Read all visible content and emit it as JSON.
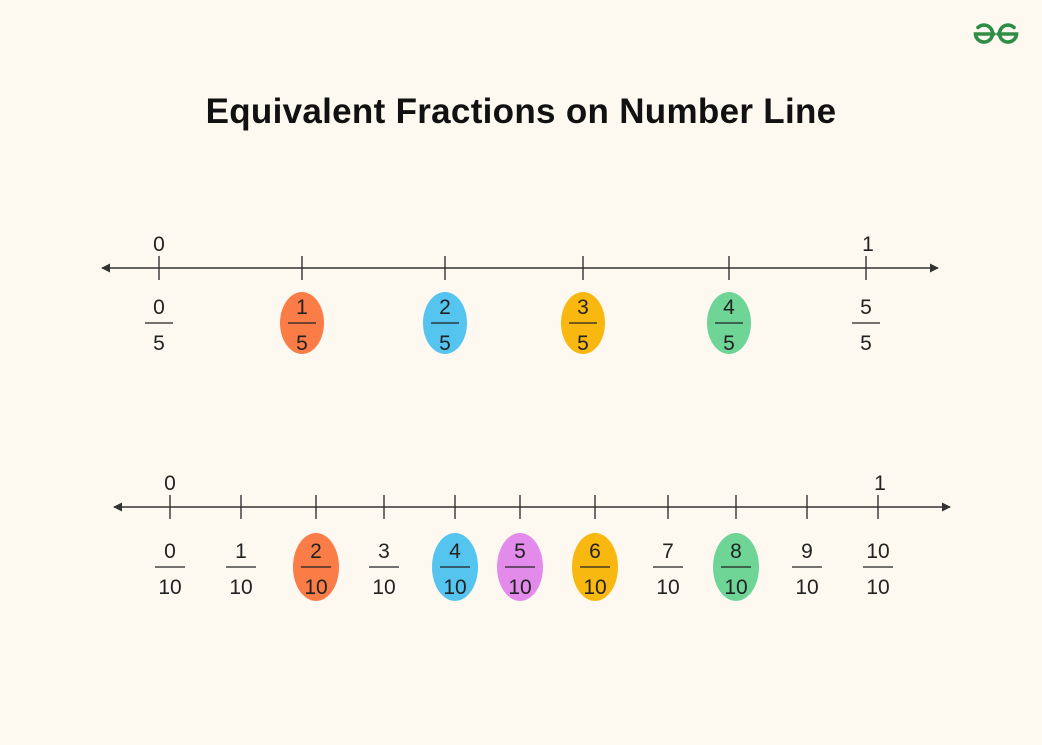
{
  "title": "Equivalent Fractions on Number Line",
  "logo": {
    "icon": "gfg-logo-icon",
    "color": "#2f8d46"
  },
  "colors": {
    "orange": "#fa7c47",
    "blue": "#55c4ef",
    "yellow": "#f9b80f",
    "green": "#6fd596",
    "purple": "#e38bea",
    "line": "#333333"
  },
  "number_lines": [
    {
      "start_label": "0",
      "end_label": "1",
      "ticks": [
        {
          "num": "0",
          "den": "5",
          "highlight": null
        },
        {
          "num": "1",
          "den": "5",
          "highlight": "orange"
        },
        {
          "num": "2",
          "den": "5",
          "highlight": "blue"
        },
        {
          "num": "3",
          "den": "5",
          "highlight": "yellow"
        },
        {
          "num": "4",
          "den": "5",
          "highlight": "green"
        },
        {
          "num": "5",
          "den": "5",
          "highlight": null
        }
      ]
    },
    {
      "start_label": "0",
      "end_label": "1",
      "ticks": [
        {
          "num": "0",
          "den": "10",
          "highlight": null
        },
        {
          "num": "1",
          "den": "10",
          "highlight": null
        },
        {
          "num": "2",
          "den": "10",
          "highlight": "orange"
        },
        {
          "num": "3",
          "den": "10",
          "highlight": null
        },
        {
          "num": "4",
          "den": "10",
          "highlight": "blue"
        },
        {
          "num": "5",
          "den": "10",
          "highlight": "purple"
        },
        {
          "num": "6",
          "den": "10",
          "highlight": "yellow"
        },
        {
          "num": "7",
          "den": "10",
          "highlight": null
        },
        {
          "num": "8",
          "den": "10",
          "highlight": "green"
        },
        {
          "num": "9",
          "den": "10",
          "highlight": null
        },
        {
          "num": "10",
          "den": "10",
          "highlight": null
        }
      ]
    }
  ]
}
